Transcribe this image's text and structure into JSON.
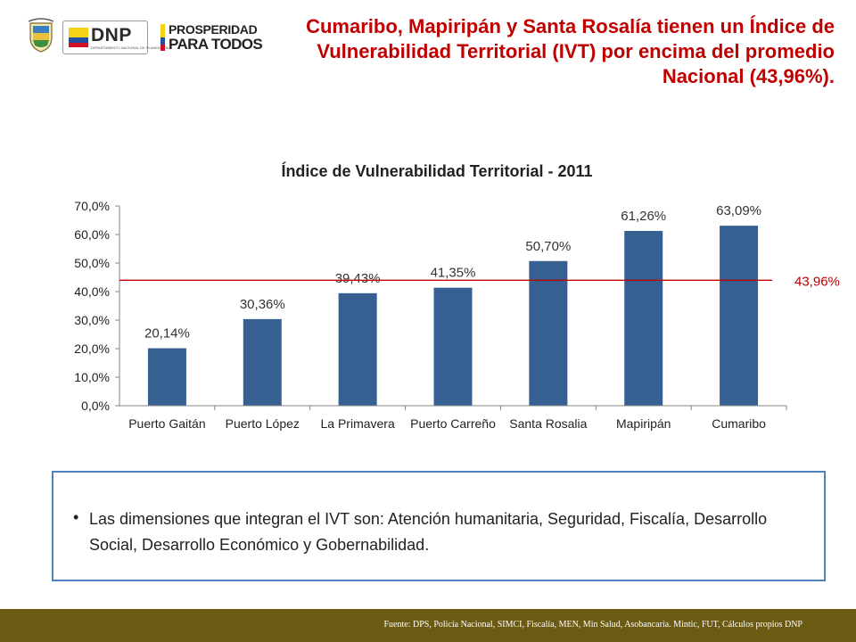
{
  "header": {
    "logo_dnp_text": "DNP",
    "logo_dnp_subtitle": "DEPARTAMENTO NACIONAL DE PLANEACIÓN",
    "logo_prosperidad_line1": "PROSPERIDAD",
    "logo_prosperidad_line2": "PARA TODOS",
    "title": "Cumaribo,  Mapiripán y Santa Rosalía tienen un Índice de Vulnerabilidad Territorial  (IVT) por encima del promedio Nacional (43,96%)."
  },
  "colors": {
    "title": "#c00000",
    "bar": "#376092",
    "reference_line": "#c00000",
    "box_border": "#4f81bd",
    "footer": "#6b5a12"
  },
  "chart_data": {
    "type": "bar",
    "title": "Índice de Vulnerabilidad Territorial - 2011",
    "categories": [
      "Puerto Gaitán",
      "Puerto López",
      "La Primavera",
      "Puerto Carreño",
      "Santa Rosalia",
      "Mapiripán",
      "Cumaribo"
    ],
    "values": [
      20.14,
      30.36,
      39.43,
      41.35,
      50.7,
      61.26,
      63.09
    ],
    "data_labels": [
      "20,14%",
      "30,36%",
      "39,43%",
      "41,35%",
      "50,70%",
      "61,26%",
      "63,09%"
    ],
    "ylim": [
      0,
      70
    ],
    "yticks": [
      0,
      10,
      20,
      30,
      40,
      50,
      60,
      70
    ],
    "ytick_labels": [
      "0,0%",
      "10,0%",
      "20,0%",
      "30,0%",
      "40,0%",
      "50,0%",
      "60,0%",
      "70,0%"
    ],
    "reference_line": {
      "value": 43.96,
      "label": "43,96%"
    },
    "grid": false,
    "legend": "none"
  },
  "info": {
    "bullet": "•",
    "text": "Las dimensiones que integran el IVT son: Atención humanitaria, Seguridad, Fiscalía, Desarrollo Social, Desarrollo Económico y Gobernabilidad."
  },
  "footer": {
    "source": "Fuente: DPS, Policía Nacional,  SIMCI, Fiscalía, MEN, Min Salud, Asobancaria. Mintic, FUT, Cálculos propios DNP"
  }
}
